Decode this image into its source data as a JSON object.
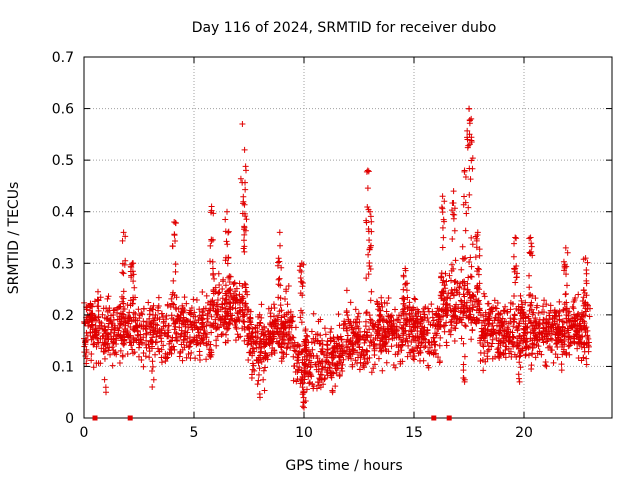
{
  "chart_data": {
    "type": "scatter",
    "title": "Day 116 of 2024, SRMTID for receiver dubo",
    "xlabel": "GPS time / hours",
    "ylabel": "SRMTID / TECUs",
    "xlim": [
      0,
      24
    ],
    "ylim": [
      0,
      0.7
    ],
    "x_ticks": [
      0,
      5,
      10,
      15,
      20
    ],
    "x_tick_labels": [
      "0",
      "5",
      "10",
      "15",
      "20"
    ],
    "y_ticks": [
      0,
      0.1,
      0.2,
      0.3,
      0.4,
      0.5,
      0.6,
      0.7
    ],
    "y_tick_labels": [
      "0",
      "0.1",
      "0.2",
      "0.3",
      "0.4",
      "0.5",
      "0.6",
      "0.7"
    ],
    "grid": true,
    "marker": "plus",
    "marker_color": "#e00000",
    "series": [
      {
        "name": "SRMTID",
        "data_x_hours": [
          0.0,
          24.0
        ],
        "baseline_value": 0.17,
        "spread": 0.06,
        "note": "dense scatter of several thousand points; envelope given by bursts"
      }
    ],
    "bursts": [
      {
        "x": 0.3,
        "y": 0.22
      },
      {
        "x": 1.8,
        "y": 0.36
      },
      {
        "x": 2.2,
        "y": 0.3
      },
      {
        "x": 4.1,
        "y": 0.38
      },
      {
        "x": 5.8,
        "y": 0.41
      },
      {
        "x": 6.5,
        "y": 0.4
      },
      {
        "x": 7.2,
        "y": 0.57
      },
      {
        "x": 7.3,
        "y": 0.52
      },
      {
        "x": 8.9,
        "y": 0.36
      },
      {
        "x": 9.9,
        "y": 0.3
      },
      {
        "x": 10.0,
        "y": 0.03
      },
      {
        "x": 12.9,
        "y": 0.48
      },
      {
        "x": 13.0,
        "y": 0.4
      },
      {
        "x": 14.6,
        "y": 0.29
      },
      {
        "x": 16.3,
        "y": 0.43
      },
      {
        "x": 16.8,
        "y": 0.44
      },
      {
        "x": 17.3,
        "y": 0.48
      },
      {
        "x": 17.5,
        "y": 0.6
      },
      {
        "x": 17.6,
        "y": 0.58
      },
      {
        "x": 17.9,
        "y": 0.36
      },
      {
        "x": 19.6,
        "y": 0.35
      },
      {
        "x": 20.3,
        "y": 0.35
      },
      {
        "x": 21.9,
        "y": 0.33
      },
      {
        "x": 22.8,
        "y": 0.31
      }
    ],
    "lows": [
      {
        "x": 1.0,
        "y": 0.05
      },
      {
        "x": 3.1,
        "y": 0.06
      },
      {
        "x": 8.0,
        "y": 0.04
      },
      {
        "x": 10.0,
        "y": 0.02
      },
      {
        "x": 11.3,
        "y": 0.05
      },
      {
        "x": 17.3,
        "y": 0.07
      },
      {
        "x": 19.8,
        "y": 0.07
      }
    ],
    "axis_markers_hours": [
      0.5,
      2.1,
      15.9,
      16.6
    ]
  }
}
